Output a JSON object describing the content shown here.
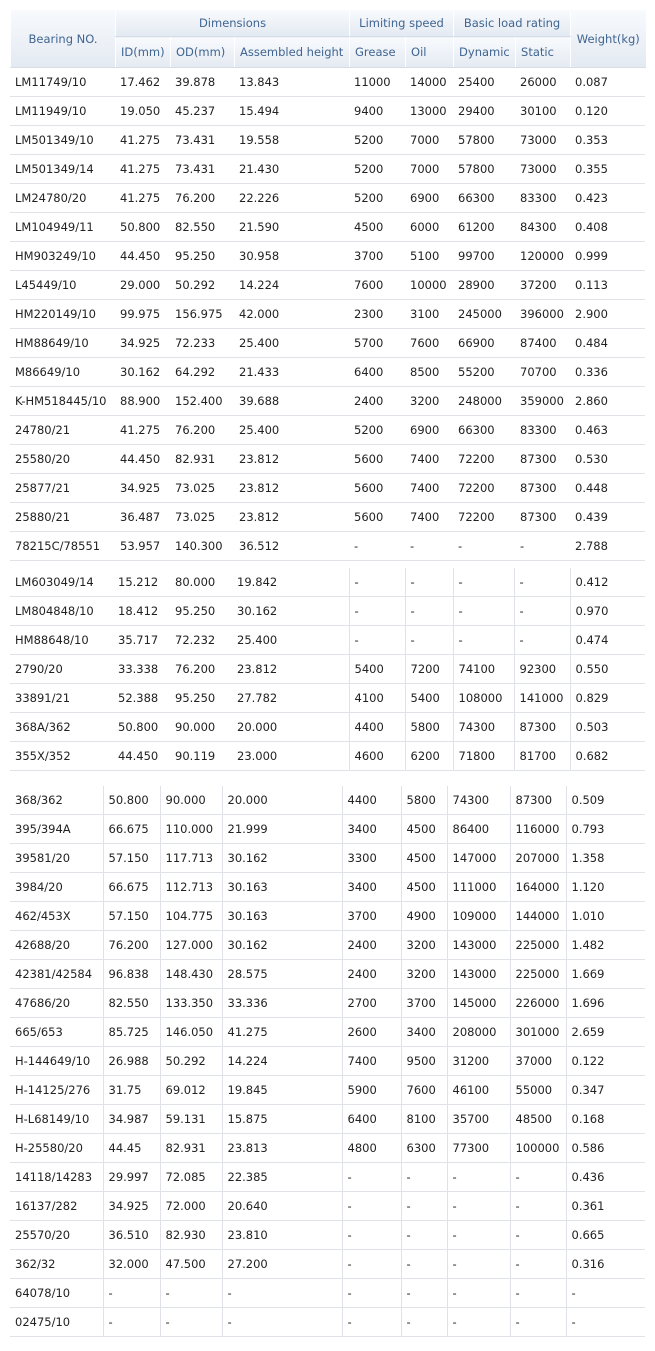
{
  "header": {
    "bearing": "Bearing NO.",
    "dimensions": "Dimensions",
    "id": "ID(mm)",
    "od": "OD(mm)",
    "assembled": "Assembled height",
    "speed": "Limiting speed",
    "grease": "Grease",
    "oil": "Oil",
    "load": "Basic load rating",
    "dynamic": "Dynamic",
    "static": "Static",
    "weight": "Weight(kg)"
  },
  "sections": [
    [
      [
        "LM11749/10",
        "17.462",
        "39.878",
        "13.843",
        "11000",
        "14000",
        "25400",
        "26000",
        "0.087"
      ],
      [
        "LM11949/10",
        "19.050",
        "45.237",
        "15.494",
        "9400",
        "13000",
        "29400",
        "30100",
        "0.120"
      ],
      [
        "LM501349/10",
        "41.275",
        "73.431",
        "19.558",
        "5200",
        "7000",
        "57800",
        "73000",
        "0.353"
      ],
      [
        "LM501349/14",
        "41.275",
        "73.431",
        "21.430",
        "5200",
        "7000",
        "57800",
        "73000",
        "0.355"
      ],
      [
        "LM24780/20",
        "41.275",
        "76.200",
        "22.226",
        "5200",
        "6900",
        "66300",
        "83300",
        "0.423"
      ],
      [
        "LM104949/11",
        "50.800",
        "82.550",
        "21.590",
        "4500",
        "6000",
        "61200",
        "84300",
        "0.408"
      ],
      [
        "HM903249/10",
        "44.450",
        "95.250",
        "30.958",
        "3700",
        "5100",
        "99700",
        "120000",
        "0.999"
      ],
      [
        "L45449/10",
        "29.000",
        "50.292",
        "14.224",
        "7600",
        "10000",
        "28900",
        "37200",
        "0.113"
      ],
      [
        "HM220149/10",
        "99.975",
        "156.975",
        "42.000",
        "2300",
        "3100",
        "245000",
        "396000",
        "2.900"
      ],
      [
        "HM88649/10",
        "34.925",
        "72.233",
        "25.400",
        "5700",
        "7600",
        "66900",
        "87400",
        "0.484"
      ],
      [
        "M86649/10",
        "30.162",
        "64.292",
        "21.433",
        "6400",
        "8500",
        "55200",
        "70700",
        "0.336"
      ],
      [
        "K-HM518445/10",
        "88.900",
        "152.400",
        "39.688",
        "2400",
        "3200",
        "248000",
        "359000",
        "2.860"
      ],
      [
        "24780/21",
        "41.275",
        "76.200",
        "25.400",
        "5200",
        "6900",
        "66300",
        "83300",
        "0.463"
      ],
      [
        "25580/20",
        "44.450",
        "82.931",
        "23.812",
        "5600",
        "7400",
        "72200",
        "87300",
        "0.530"
      ],
      [
        "25877/21",
        "34.925",
        "73.025",
        "23.812",
        "5600",
        "7400",
        "72200",
        "87300",
        "0.448"
      ],
      [
        "25880/21",
        "36.487",
        "73.025",
        "23.812",
        "5600",
        "7400",
        "72200",
        "87300",
        "0.439"
      ],
      [
        "78215C/78551",
        "53.957",
        "140.300",
        "36.512",
        "-",
        "-",
        "-",
        "-",
        "2.788"
      ]
    ],
    [
      [
        "LM603049/14",
        "15.212",
        "80.000",
        "19.842",
        "-",
        "-",
        "-",
        "-",
        "0.412"
      ],
      [
        "LM804848/10",
        "18.412",
        "95.250",
        "30.162",
        "-",
        "-",
        "-",
        "-",
        "0.970"
      ],
      [
        "HM88648/10",
        "35.717",
        "72.232",
        "25.400",
        "-",
        "-",
        "-",
        "-",
        "0.474"
      ],
      [
        "2790/20",
        "33.338",
        "76.200",
        "23.812",
        "5400",
        "7200",
        "74100",
        "92300",
        "0.550"
      ],
      [
        "33891/21",
        "52.388",
        "95.250",
        "27.782",
        "4100",
        "5400",
        "108000",
        "141000",
        "0.829"
      ],
      [
        "368A/362",
        "50.800",
        "90.000",
        "20.000",
        "4400",
        "5800",
        "74300",
        "87300",
        "0.503"
      ],
      [
        "355X/352",
        "44.450",
        "90.119",
        "23.000",
        "4600",
        "6200",
        "71800",
        "81700",
        "0.682"
      ]
    ],
    [
      [
        "368/362",
        "50.800",
        "90.000",
        "20.000",
        "4400",
        "5800",
        "74300",
        "87300",
        "0.509"
      ],
      [
        "395/394A",
        "66.675",
        "110.000",
        "21.999",
        "3400",
        "4500",
        "86400",
        "116000",
        "0.793"
      ],
      [
        "39581/20",
        "57.150",
        "117.713",
        "30.162",
        "3300",
        "4500",
        "147000",
        "207000",
        "1.358"
      ],
      [
        "3984/20",
        "66.675",
        "112.713",
        "30.163",
        "3400",
        "4500",
        "111000",
        "164000",
        "1.120"
      ],
      [
        "462/453X",
        "57.150",
        "104.775",
        "30.163",
        "3700",
        "4900",
        "109000",
        "144000",
        "1.010"
      ],
      [
        "42688/20",
        "76.200",
        "127.000",
        "30.162",
        "2400",
        "3200",
        "143000",
        "225000",
        "1.482"
      ],
      [
        "42381/42584",
        "96.838",
        "148.430",
        "28.575",
        "2400",
        "3200",
        "143000",
        "225000",
        "1.669"
      ],
      [
        "47686/20",
        "82.550",
        "133.350",
        "33.336",
        "2700",
        "3700",
        "145000",
        "226000",
        "1.696"
      ],
      [
        "665/653",
        "85.725",
        "146.050",
        "41.275",
        "2600",
        "3400",
        "208000",
        "301000",
        "2.659"
      ],
      [
        "H-144649/10",
        "26.988",
        "50.292",
        "14.224",
        "7400",
        "9500",
        "31200",
        "37000",
        "0.122"
      ],
      [
        "H-14125/276",
        "31.75",
        "69.012",
        "19.845",
        "5900",
        "7600",
        "46100",
        "55000",
        "0.347"
      ],
      [
        "H-L68149/10",
        "34.987",
        "59.131",
        "15.875",
        "6400",
        "8100",
        "35700",
        "48500",
        "0.168"
      ],
      [
        "H-25580/20",
        "44.45",
        "82.931",
        "23.813",
        "4800",
        "6300",
        "77300",
        "100000",
        "0.586"
      ],
      [
        "14118/14283",
        "29.997",
        "72.085",
        "22.385",
        "-",
        "-",
        "-",
        "-",
        "0.436"
      ],
      [
        "16137/282",
        "34.925",
        "72.000",
        "20.640",
        "-",
        "-",
        "-",
        "-",
        "0.361"
      ],
      [
        "25570/20",
        "36.510",
        "82.930",
        "23.810",
        "-",
        "-",
        "-",
        "-",
        "0.665"
      ],
      [
        "362/32",
        "32.000",
        "47.500",
        "27.200",
        "-",
        "-",
        "-",
        "-",
        "0.316"
      ],
      [
        "64078/10",
        "-",
        "-",
        "-",
        "-",
        "-",
        "-",
        "-",
        "-"
      ],
      [
        "02475/10",
        "-",
        "-",
        "-",
        "-",
        "-",
        "-",
        "-",
        "-"
      ]
    ]
  ]
}
